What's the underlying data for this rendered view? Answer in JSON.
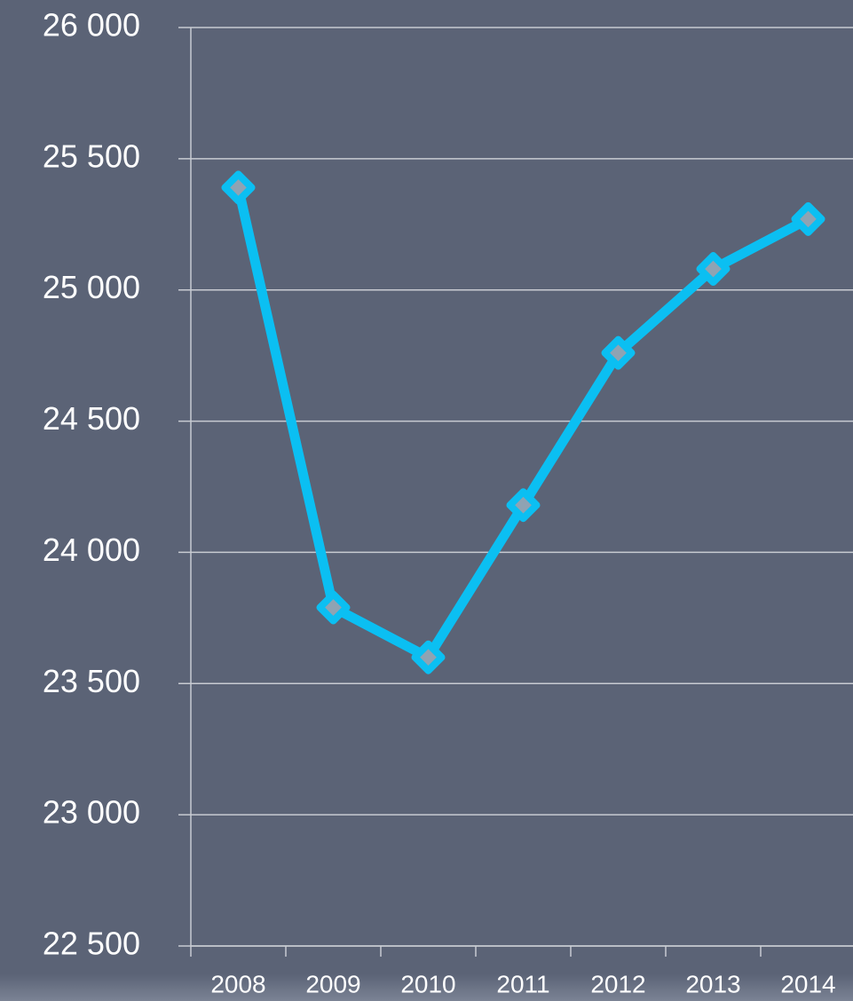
{
  "chart_data": {
    "type": "line",
    "categories": [
      "2008",
      "2009",
      "2010",
      "2011",
      "2012",
      "2013",
      "2014"
    ],
    "series": [
      {
        "color": "#0bbff2",
        "values": [
          25390,
          23790,
          23600,
          24180,
          24760,
          25080,
          25270
        ]
      }
    ],
    "ylim": [
      22500,
      26000
    ],
    "yticks": [
      {
        "value": 22500,
        "label": "22 500"
      },
      {
        "value": 23000,
        "label": "23 000"
      },
      {
        "value": 23500,
        "label": "23 500"
      },
      {
        "value": 24000,
        "label": "24 000"
      },
      {
        "value": 24500,
        "label": "24 500"
      },
      {
        "value": 25000,
        "label": "25 000"
      },
      {
        "value": 25500,
        "label": "25 500"
      },
      {
        "value": 26000,
        "label": "26 000"
      }
    ],
    "grid": true
  }
}
